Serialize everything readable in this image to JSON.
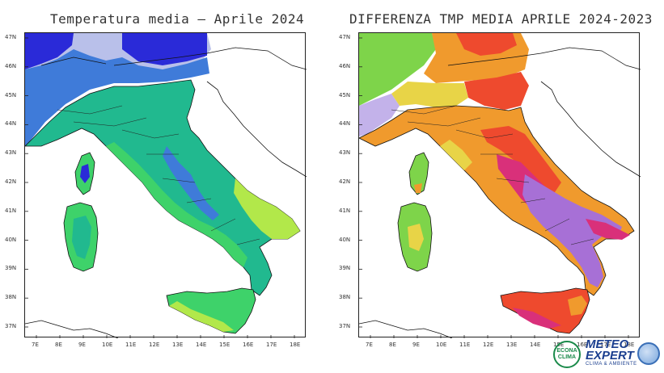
{
  "left_panel": {
    "title": "Temperatura media – Aprile 2024",
    "lat_labels": [
      "47N",
      "46N",
      "45N",
      "44N",
      "43N",
      "42N",
      "41N",
      "40N",
      "39N",
      "38N",
      "37N"
    ],
    "lon_labels": [
      "7E",
      "8E",
      "9E",
      "10E",
      "11E",
      "12E",
      "13E",
      "14E",
      "15E",
      "16E",
      "17E",
      "18E"
    ],
    "palette": {
      "cold_high": "#2a2ad8",
      "cold_mid": "#3f7bd9",
      "alpine": "#b9c0ea",
      "teal": "#21b98f",
      "green": "#3ed26a",
      "yellowgreen": "#b2e84a",
      "sea": "#ffffff"
    }
  },
  "right_panel": {
    "title": "DIFFERENZA TMP MEDIA APRILE 2024-2023",
    "lat_labels": [
      "47N",
      "46N",
      "45N",
      "44N",
      "43N",
      "42N",
      "41N",
      "40N",
      "39N",
      "38N",
      "37N"
    ],
    "lon_labels": [
      "7E",
      "8E",
      "9E",
      "10E",
      "11E",
      "12E",
      "13E",
      "14E",
      "15E",
      "16E",
      "17E",
      "18E"
    ],
    "palette": {
      "green": "#7ed44a",
      "yellow": "#e8d447",
      "orange": "#f09a2d",
      "red": "#ee4a2e",
      "magenta": "#d9307a",
      "purple": "#a770d6",
      "lilac": "#c3b2ea",
      "sea": "#ffffff"
    }
  },
  "logos": {
    "econ_line1": "ECONA",
    "econ_line2": "CLIMA",
    "meteo_line1": "METEO",
    "meteo_line2": "EXPERT",
    "meteo_tagline": "CLIMA & AMBIENTE"
  }
}
